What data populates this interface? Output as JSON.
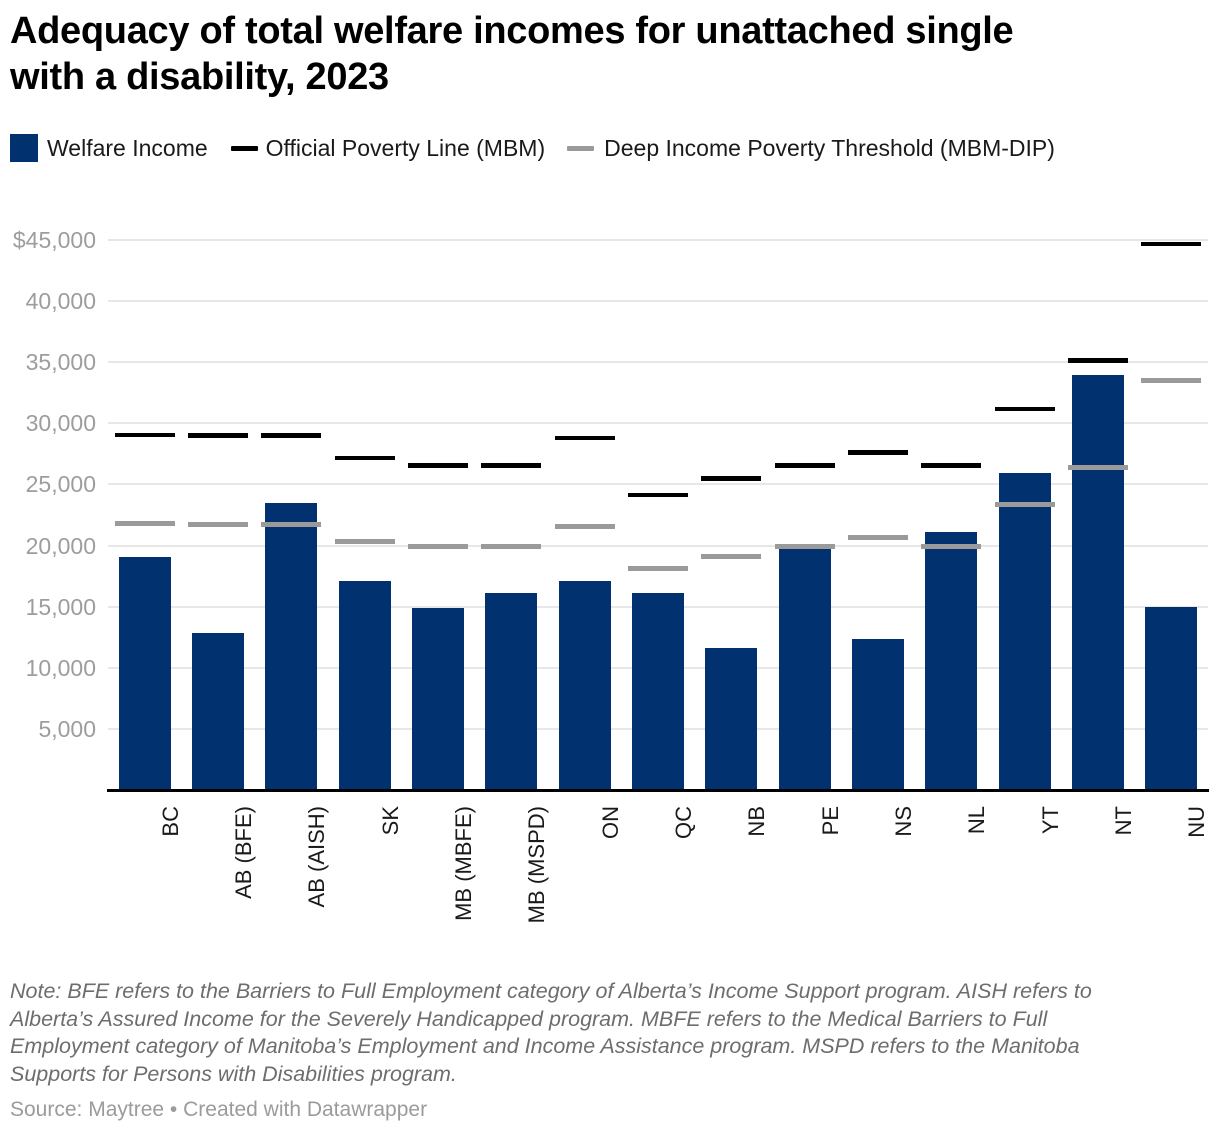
{
  "title": {
    "line1": "Adequacy of total welfare incomes for unattached single",
    "line2": "with a disability, 2023"
  },
  "legend": {
    "items": [
      {
        "label": "Welfare Income",
        "marker": "square",
        "color": "#02316f"
      },
      {
        "label": "Official Poverty Line (MBM)",
        "marker": "dash",
        "color": "#000000"
      },
      {
        "label": "Deep Income Poverty Threshold (MBM-DIP)",
        "marker": "dash",
        "color": "#9a9a9a"
      }
    ]
  },
  "chart_data": {
    "type": "bar",
    "title": "Adequacy of total welfare incomes for unattached single with a disability, 2023",
    "categories": [
      "BC",
      "AB (BFE)",
      "AB (AISH)",
      "SK",
      "MB (MBFE)",
      "MB (MSPD)",
      "ON",
      "QC",
      "NB",
      "PE",
      "NS",
      "NL",
      "YT",
      "NT",
      "NU"
    ],
    "series": [
      {
        "name": "Welfare Income",
        "style": "bar",
        "color": "#02316f",
        "values": [
          19100,
          12850,
          23450,
          17150,
          14900,
          16150,
          17100,
          16100,
          11600,
          19800,
          12400,
          21100,
          25900,
          33950,
          14950
        ]
      },
      {
        "name": "Official Poverty Line (MBM)",
        "style": "tick",
        "color": "#000000",
        "values": [
          29050,
          29000,
          29000,
          27150,
          26550,
          26550,
          28800,
          24150,
          25500,
          26550,
          27600,
          26550,
          31150,
          35100,
          44650
        ]
      },
      {
        "name": "Deep Income Poverty Threshold (MBM-DIP)",
        "style": "tick",
        "color": "#9a9a9a",
        "values": [
          21800,
          21750,
          21750,
          20350,
          19900,
          19900,
          21550,
          18150,
          19150,
          19950,
          20650,
          19950,
          23350,
          26350,
          33450
        ]
      }
    ],
    "yticks": [
      {
        "value": 45000,
        "label": "$45,000"
      },
      {
        "value": 40000,
        "label": "40,000"
      },
      {
        "value": 35000,
        "label": "35,000"
      },
      {
        "value": 30000,
        "label": "30,000"
      },
      {
        "value": 25000,
        "label": "25,000"
      },
      {
        "value": 20000,
        "label": "20,000"
      },
      {
        "value": 15000,
        "label": "15,000"
      },
      {
        "value": 10000,
        "label": "10,000"
      },
      {
        "value": 5000,
        "label": "5,000"
      }
    ],
    "ylim": [
      0,
      47000
    ],
    "xlabel": "",
    "ylabel": "",
    "grid": true,
    "legend_position": "top"
  },
  "colors": {
    "bar": "#02316f",
    "poverty_line": "#000000",
    "dip_threshold": "#9a9a9a",
    "gridline": "#e7e7e7",
    "axis": "#000000",
    "ytick_text": "#9d9d9d",
    "xtick_text": "#1a1a1a",
    "note_text": "#6d6d6d",
    "source_text": "#9b9b9b"
  },
  "note_lines": [
    "Note: BFE refers to the Barriers to Full Employment category of Alberta’s Income Support program. AISH refers to",
    "Alberta’s Assured Income for the Severely Handicapped program. MBFE refers to the Medical Barriers to Full",
    "Employment category of Manitoba’s Employment and Income Assistance program. MSPD refers to the Manitoba",
    "Supports for Persons with Disabilities program."
  ],
  "source": {
    "prefix": "Source: ",
    "name": "Maytree",
    "separator": " • ",
    "attribution": "Created with Datawrapper"
  }
}
